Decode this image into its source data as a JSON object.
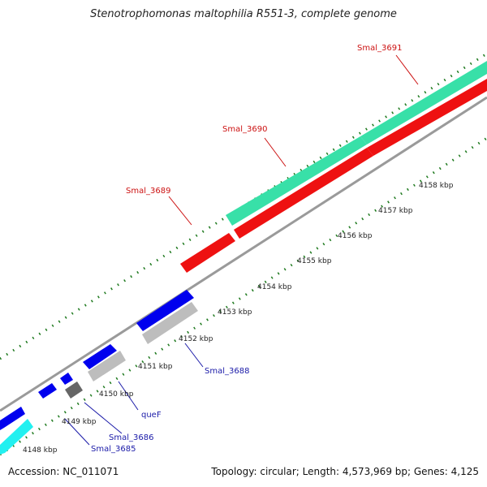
{
  "title": "Stenotrophomonas maltophilia R551-3, complete genome",
  "footer": {
    "accession": "Accession: NC_011071",
    "summary": "Topology: circular; Length: 4,573,969 bp; Genes: 4,125"
  },
  "colors": {
    "backbone": "#8c8c8c",
    "ticks": "#1f7a1f",
    "cds_forward": "#0000ee",
    "cds_reverse_grey": "#bdbdbd",
    "dark_grey": "#666666",
    "teal": "#38e0a8",
    "cyan": "#22f0f0",
    "red": "#ee1111",
    "label_blue": "#1a1aa8",
    "label_red": "#cc1111"
  },
  "ruler": {
    "unit": "kbp",
    "labels": [
      "4148 kbp",
      "4149 kbp",
      "4150 kbp",
      "4151 kbp",
      "4152 kbp",
      "4153 kbp",
      "4154 kbp",
      "4155 kbp",
      "4156 kbp",
      "4157 kbp",
      "4158 kbp"
    ]
  },
  "genes": [
    {
      "name": "Smal_3685",
      "color": "label_blue"
    },
    {
      "name": "Smal_3686",
      "color": "label_blue"
    },
    {
      "name": "queF",
      "color": "label_blue"
    },
    {
      "name": "Smal_3688",
      "color": "label_blue"
    },
    {
      "name": "Smal_3689",
      "color": "label_red"
    },
    {
      "name": "Smal_3690",
      "color": "label_red"
    },
    {
      "name": "Smal_3691",
      "color": "label_red"
    }
  ]
}
